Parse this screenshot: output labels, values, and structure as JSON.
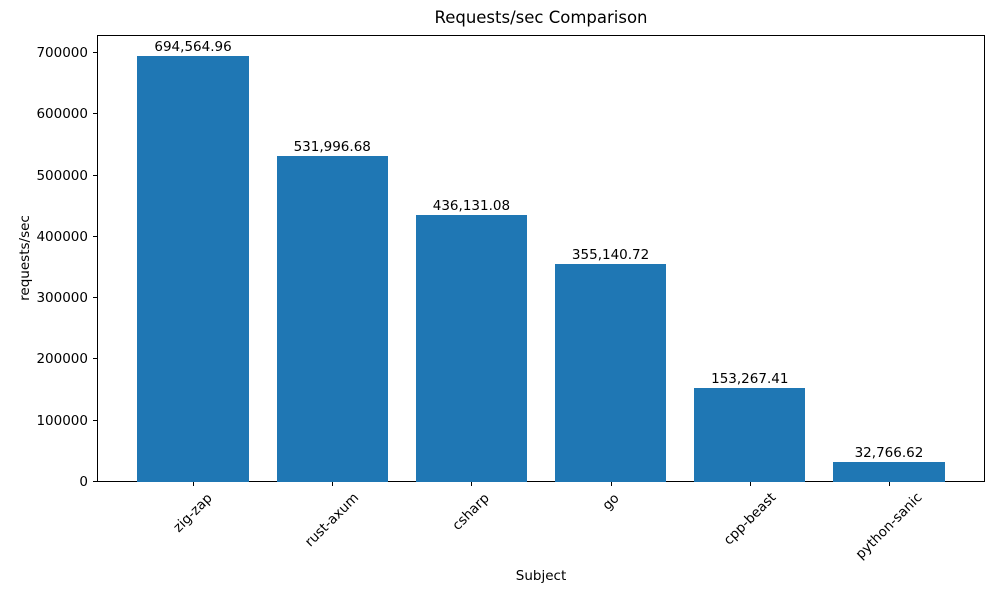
{
  "chart_data": {
    "type": "bar",
    "title": "Requests/sec Comparison",
    "xlabel": "Subject",
    "ylabel": "requests/sec",
    "categories": [
      "zig-zap",
      "rust-axum",
      "csharp",
      "go",
      "cpp-beast",
      "python-sanic"
    ],
    "values": [
      694564.96,
      531996.68,
      436131.08,
      355140.72,
      153267.41,
      32766.62
    ],
    "value_labels": [
      "694,564.96",
      "531,996.68",
      "436,131.08",
      "355,140.72",
      "153,267.41",
      "32,766.62"
    ],
    "yticks": [
      0,
      100000,
      200000,
      300000,
      400000,
      500000,
      600000,
      700000
    ],
    "ytick_labels": [
      "0",
      "100000",
      "200000",
      "300000",
      "400000",
      "500000",
      "600000",
      "700000"
    ],
    "ylim": [
      0,
      729293.21
    ],
    "x_tick_rotation": 45,
    "bar_color": "#1f77b4",
    "background_color": "#ffffff",
    "grid": false,
    "legend": null
  }
}
